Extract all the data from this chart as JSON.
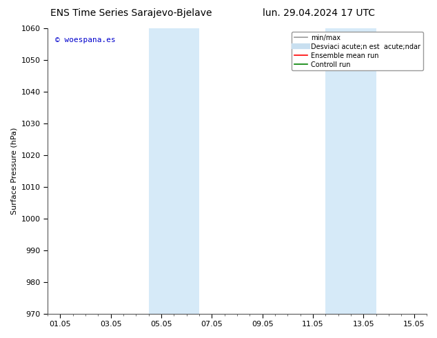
{
  "title_left": "ENS Time Series Sarajevo-Bjelave",
  "title_right": "lun. 29.04.2024 17 UTC",
  "ylabel": "Surface Pressure (hPa)",
  "ylim": [
    970,
    1060
  ],
  "yticks": [
    970,
    980,
    990,
    1000,
    1010,
    1020,
    1030,
    1040,
    1050,
    1060
  ],
  "xtick_labels": [
    "01.05",
    "03.05",
    "05.05",
    "07.05",
    "09.05",
    "11.05",
    "13.05",
    "15.05"
  ],
  "xtick_positions": [
    0,
    2,
    4,
    6,
    8,
    10,
    12,
    14
  ],
  "xlim": [
    -0.5,
    14.5
  ],
  "shaded_regions": [
    {
      "xmin": 3.5,
      "xmax": 4.5,
      "color": "#d6eaf8"
    },
    {
      "xmin": 4.5,
      "xmax": 5.5,
      "color": "#d6eaf8"
    },
    {
      "xmin": 10.5,
      "xmax": 11.5,
      "color": "#d6eaf8"
    },
    {
      "xmin": 11.5,
      "xmax": 12.5,
      "color": "#d6eaf8"
    }
  ],
  "watermark": "© woespana.es",
  "watermark_color": "#0000cc",
  "legend_entries": [
    {
      "label": "min/max",
      "color": "#999999",
      "lw": 1.2,
      "type": "line"
    },
    {
      "label": "Desviaci acute;n est  acute;ndar",
      "color": "#c8dff0",
      "lw": 6,
      "type": "line"
    },
    {
      "label": "Ensemble mean run",
      "color": "#ff0000",
      "lw": 1.2,
      "type": "line"
    },
    {
      "label": "Controll run",
      "color": "#008000",
      "lw": 1.2,
      "type": "line"
    }
  ],
  "bg_color": "#ffffff",
  "title_fontsize": 10,
  "axis_fontsize": 8,
  "tick_fontsize": 8,
  "legend_fontsize": 7
}
